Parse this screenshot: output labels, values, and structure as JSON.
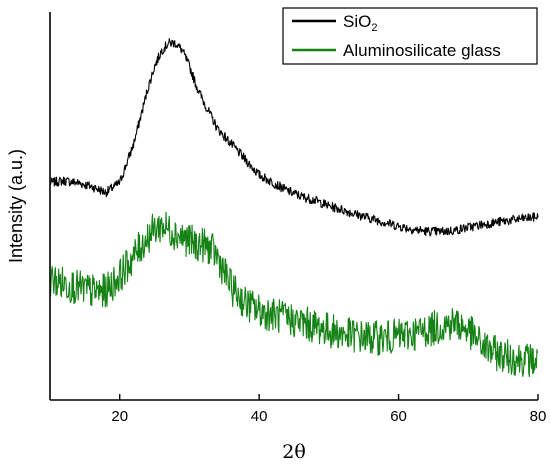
{
  "chart_data": {
    "type": "line",
    "xlabel": "2θ",
    "ylabel": "Intensity (a.u.)",
    "xlim": [
      10,
      80
    ],
    "ylim": [
      0,
      1
    ],
    "grid": false,
    "legend_position": "top-right",
    "x_ticks": [
      "20",
      "40",
      "60",
      "80"
    ],
    "x_tick_values": [
      20,
      40,
      60,
      80
    ],
    "series": [
      {
        "name_base": "SiO",
        "name_sub": "2",
        "color": "#000000",
        "x": [
          10,
          12,
          14,
          16,
          18,
          20,
          22,
          24,
          25,
          26,
          27,
          28,
          29,
          30,
          31,
          32,
          34,
          36,
          38,
          40,
          42,
          44,
          46,
          48,
          50,
          52,
          54,
          56,
          58,
          60,
          62,
          64,
          66,
          68,
          70,
          72,
          74,
          76,
          78,
          80
        ],
        "y": [
          0.56,
          0.565,
          0.56,
          0.55,
          0.535,
          0.56,
          0.66,
          0.8,
          0.86,
          0.9,
          0.92,
          0.92,
          0.9,
          0.86,
          0.81,
          0.77,
          0.7,
          0.66,
          0.62,
          0.58,
          0.56,
          0.54,
          0.525,
          0.515,
          0.5,
          0.49,
          0.478,
          0.468,
          0.458,
          0.448,
          0.44,
          0.435,
          0.434,
          0.437,
          0.445,
          0.452,
          0.458,
          0.463,
          0.468,
          0.472
        ]
      },
      {
        "name": "Aluminosilicate glass",
        "color": "#148214",
        "x": [
          10,
          12,
          14,
          16,
          18,
          20,
          22,
          24,
          25,
          26,
          27,
          28,
          29,
          30,
          31,
          32,
          33,
          34,
          35,
          36,
          38,
          40,
          42,
          44,
          46,
          48,
          50,
          52,
          54,
          56,
          58,
          60,
          62,
          64,
          66,
          68,
          70,
          72,
          74,
          76,
          78,
          80
        ],
        "y": [
          0.31,
          0.3,
          0.29,
          0.28,
          0.28,
          0.32,
          0.37,
          0.42,
          0.44,
          0.45,
          0.44,
          0.43,
          0.42,
          0.41,
          0.4,
          0.4,
          0.39,
          0.37,
          0.33,
          0.29,
          0.25,
          0.23,
          0.22,
          0.21,
          0.2,
          0.19,
          0.18,
          0.17,
          0.165,
          0.16,
          0.16,
          0.165,
          0.17,
          0.18,
          0.19,
          0.2,
          0.18,
          0.14,
          0.12,
          0.11,
          0.105,
          0.1
        ]
      }
    ]
  }
}
